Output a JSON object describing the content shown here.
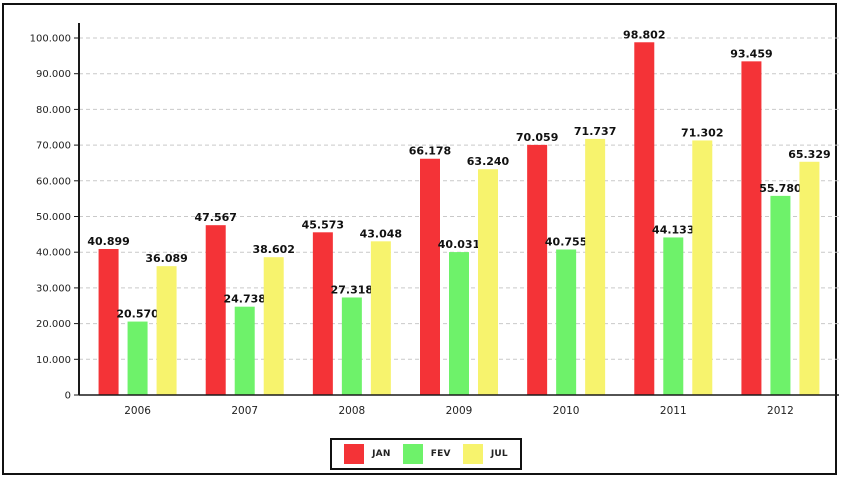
{
  "colors": {
    "JAN": "#f43337",
    "FEV": "#6ef26a",
    "JUL": "#f7f36d",
    "axis": "#1a1a1a",
    "grid": "#c9c9c9"
  },
  "legend": [
    {
      "key": "JAN",
      "label": "JAN"
    },
    {
      "key": "FEV",
      "label": "FEV"
    },
    {
      "key": "JUL",
      "label": "JUL"
    }
  ],
  "chart_data": {
    "type": "bar",
    "title": "",
    "xlabel": "",
    "ylabel": "",
    "ylim": [
      0,
      100000
    ],
    "yticks": [
      0,
      10000,
      20000,
      30000,
      40000,
      50000,
      60000,
      70000,
      80000,
      90000,
      100000
    ],
    "ytick_labels": [
      "0",
      "10.000",
      "20.000",
      "30.000",
      "40.000",
      "50.000",
      "60.000",
      "70.000",
      "80.000",
      "90.000",
      "100.000"
    ],
    "grid": true,
    "legend_position": "bottom-center",
    "categories": [
      "2006",
      "2007",
      "2008",
      "2009",
      "2010",
      "2011",
      "2012"
    ],
    "series": [
      {
        "name": "JAN",
        "values": [
          40899,
          47567,
          45573,
          66178,
          70059,
          98802,
          93459
        ],
        "labels": [
          "40.899",
          "47.567",
          "45.573",
          "66.178",
          "70.059",
          "98.802",
          "93.459"
        ]
      },
      {
        "name": "FEV",
        "values": [
          20570,
          24738,
          27318,
          40031,
          40755,
          44133,
          55780
        ],
        "labels": [
          "20.570",
          "24.738",
          "27.318",
          "40.031",
          "40.755",
          "44.133",
          "55.780"
        ]
      },
      {
        "name": "JUL",
        "values": [
          36089,
          38602,
          43048,
          63240,
          71737,
          71302,
          65329
        ],
        "labels": [
          "36.089",
          "38.602",
          "43.048",
          "63.240",
          "71.737",
          "71.302",
          "65.329"
        ]
      }
    ]
  }
}
